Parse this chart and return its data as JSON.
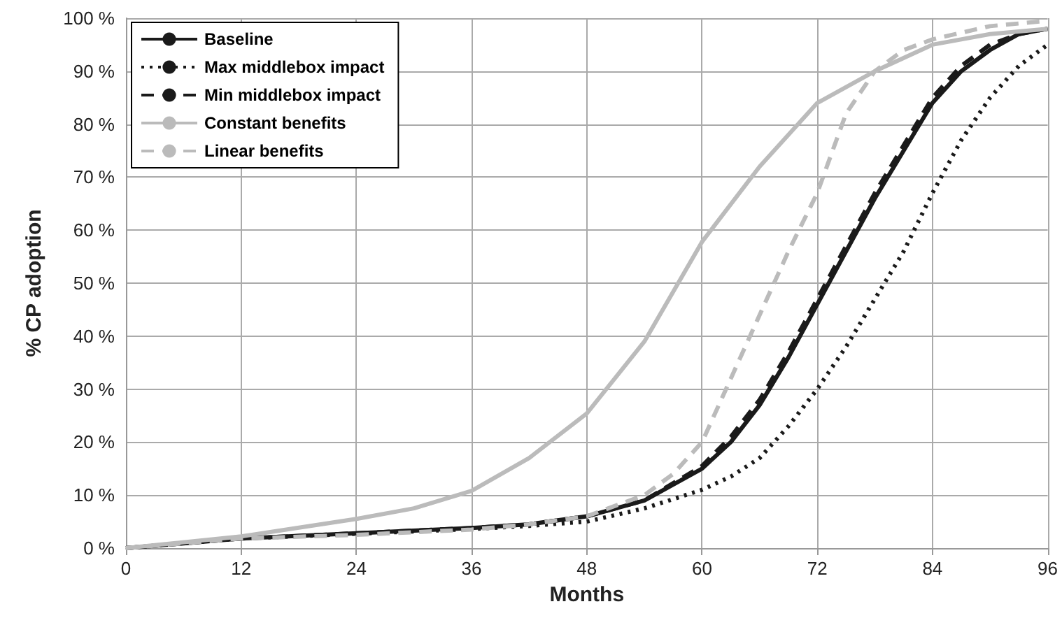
{
  "chart_data": {
    "type": "line",
    "xlabel": "Months",
    "ylabel": "% CP adoption",
    "xlim": [
      0,
      96
    ],
    "xticks": [
      0,
      12,
      24,
      36,
      48,
      60,
      72,
      84,
      96
    ],
    "ylim": [
      0,
      100
    ],
    "yticks": [
      {
        "value": 0,
        "label": "0 %"
      },
      {
        "value": 10,
        "label": "10 %"
      },
      {
        "value": 20,
        "label": "20 %"
      },
      {
        "value": 30,
        "label": "30 %"
      },
      {
        "value": 40,
        "label": "40 %"
      },
      {
        "value": 50,
        "label": "50 %"
      },
      {
        "value": 60,
        "label": "60 %"
      },
      {
        "value": 70,
        "label": "70 %"
      },
      {
        "value": 80,
        "label": "80 %"
      },
      {
        "value": 90,
        "label": "90 %"
      },
      {
        "value": 100,
        "label": "100 %"
      }
    ],
    "grid": true,
    "legend": "top left",
    "marker": "none",
    "series": [
      {
        "name": "Baseline",
        "color": "#1a1a1a",
        "line_style": "solid",
        "x": [
          0,
          12,
          24,
          36,
          42,
          48,
          54,
          60,
          63,
          66,
          69,
          72,
          75,
          78,
          81,
          84,
          87,
          90,
          93,
          96
        ],
        "values": [
          0,
          1.8,
          2.8,
          3.8,
          4.5,
          6,
          9,
          15,
          20,
          27,
          36,
          46,
          56,
          66,
          75,
          84,
          90,
          94,
          97,
          98
        ]
      },
      {
        "name": "Max middlebox impact",
        "color": "#1a1a1a",
        "line_style": "dotted",
        "x": [
          0,
          12,
          24,
          36,
          42,
          48,
          54,
          60,
          63,
          66,
          69,
          72,
          75,
          78,
          81,
          84,
          87,
          90,
          93,
          96
        ],
        "values": [
          0,
          1.8,
          2.7,
          3.6,
          4.2,
          5,
          7.5,
          11,
          13.5,
          17,
          23,
          30,
          38,
          47,
          56,
          67,
          77,
          85,
          91,
          95
        ]
      },
      {
        "name": "Min middlebox impact",
        "color": "#1a1a1a",
        "line_style": "dashed",
        "x": [
          0,
          12,
          24,
          36,
          42,
          48,
          54,
          60,
          63,
          66,
          69,
          72,
          75,
          78,
          81,
          84,
          87,
          90,
          93,
          96
        ],
        "values": [
          0,
          1.8,
          2.8,
          3.8,
          4.5,
          6,
          9,
          15.5,
          21,
          28,
          37,
          47,
          57,
          67,
          76,
          85,
          91,
          95,
          97,
          98
        ]
      },
      {
        "name": "Constant benefits",
        "color": "#bbbbbb",
        "line_style": "solid",
        "x": [
          0,
          12,
          24,
          30,
          36,
          42,
          48,
          54,
          60,
          66,
          72,
          78,
          84,
          90,
          96
        ],
        "values": [
          0,
          2.2,
          5.5,
          7.5,
          10.8,
          17,
          25.4,
          39,
          57.8,
          72,
          84,
          90,
          95,
          97,
          98
        ]
      },
      {
        "name": "Linear benefits",
        "color": "#bbbbbb",
        "line_style": "dashed",
        "x": [
          0,
          12,
          24,
          36,
          42,
          48,
          54,
          57,
          60,
          63,
          66,
          69,
          72,
          75,
          78,
          81,
          84,
          90,
          96
        ],
        "values": [
          0,
          1.8,
          2.5,
          3.5,
          4.5,
          6,
          10,
          14,
          20,
          32,
          44,
          56,
          67,
          82,
          90,
          94,
          96,
          98.5,
          99.5
        ]
      }
    ]
  }
}
